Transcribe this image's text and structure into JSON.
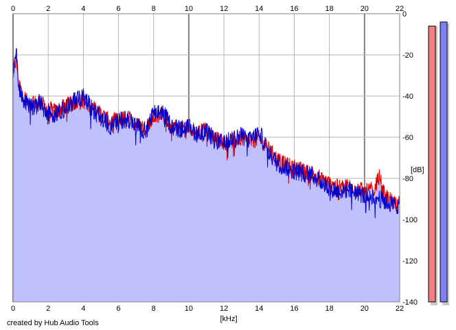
{
  "chart_data": {
    "type": "line",
    "xlabel": "[kHz]",
    "ylabel": "[dB]",
    "xlim": [
      0,
      22
    ],
    "ylim": [
      -140,
      0
    ],
    "x_ticks": [
      "0",
      "2",
      "4",
      "6",
      "8",
      "10",
      "12",
      "14",
      "16",
      "18",
      "20",
      "22"
    ],
    "y_ticks": [
      "0",
      "-20",
      "-40",
      "-60",
      "-80",
      "-100",
      "-120",
      "-140"
    ],
    "grid": true,
    "colors": {
      "fill": "#c0c0ff",
      "left_channel": "#e00000",
      "right_channel": "#0000cc",
      "grid": "#b4b4b4",
      "major_grid": "#808080",
      "left_meter": "#f08080",
      "right_meter": "#8080f0"
    },
    "series": [
      {
        "color": "#e00000",
        "x": [
          0,
          0.1,
          0.2,
          0.3,
          0.5,
          0.8,
          1.0,
          1.5,
          2.0,
          2.5,
          3.0,
          3.5,
          4.0,
          4.5,
          5.0,
          5.5,
          6.0,
          6.5,
          7.0,
          7.5,
          8.0,
          8.5,
          9.0,
          9.5,
          10.0,
          10.5,
          11.0,
          11.5,
          12.0,
          12.5,
          13.0,
          13.5,
          14.0,
          14.5,
          15.0,
          15.5,
          16.0,
          16.5,
          17.0,
          17.5,
          18.0,
          18.5,
          19.0,
          19.5,
          20.0,
          20.5,
          20.9,
          21.0,
          21.5,
          22.0
        ],
        "y": [
          -28,
          -24,
          -22,
          -32,
          -38,
          -42,
          -44,
          -42,
          -46,
          -47,
          -44,
          -43,
          -42,
          -45,
          -48,
          -52,
          -51,
          -50,
          -53,
          -55,
          -50,
          -48,
          -53,
          -55,
          -54,
          -57,
          -56,
          -60,
          -62,
          -61,
          -60,
          -62,
          -60,
          -65,
          -70,
          -73,
          -74,
          -76,
          -77,
          -79,
          -82,
          -84,
          -83,
          -84,
          -86,
          -85,
          -78,
          -86,
          -90,
          -92
        ]
      },
      {
        "color": "#0000cc",
        "x": [
          0,
          0.1,
          0.2,
          0.3,
          0.5,
          0.8,
          1.0,
          1.5,
          2.0,
          2.5,
          3.0,
          3.5,
          4.0,
          4.5,
          5.0,
          5.5,
          6.0,
          6.5,
          7.0,
          7.5,
          8.0,
          8.5,
          9.0,
          9.5,
          10.0,
          10.5,
          11.0,
          11.5,
          12.0,
          12.5,
          13.0,
          13.5,
          14.0,
          14.5,
          15.0,
          15.5,
          16.0,
          16.5,
          17.0,
          17.5,
          18.0,
          18.5,
          19.0,
          19.5,
          20.0,
          20.5,
          21.0,
          21.5,
          22.0
        ],
        "y": [
          -27,
          -22,
          -19,
          -34,
          -40,
          -43,
          -45,
          -43,
          -48,
          -48,
          -45,
          -42,
          -40,
          -46,
          -50,
          -54,
          -52,
          -50,
          -54,
          -57,
          -48,
          -47,
          -54,
          -56,
          -55,
          -58,
          -57,
          -61,
          -63,
          -60,
          -59,
          -61,
          -57,
          -66,
          -72,
          -74,
          -76,
          -77,
          -78,
          -81,
          -84,
          -86,
          -85,
          -86,
          -88,
          -88,
          -90,
          -92,
          -93
        ]
      }
    ],
    "meters": [
      {
        "channel": "left",
        "level_db": -6
      },
      {
        "channel": "right",
        "level_db": -4
      }
    ],
    "credit": "created by Hub Audio Tools"
  }
}
